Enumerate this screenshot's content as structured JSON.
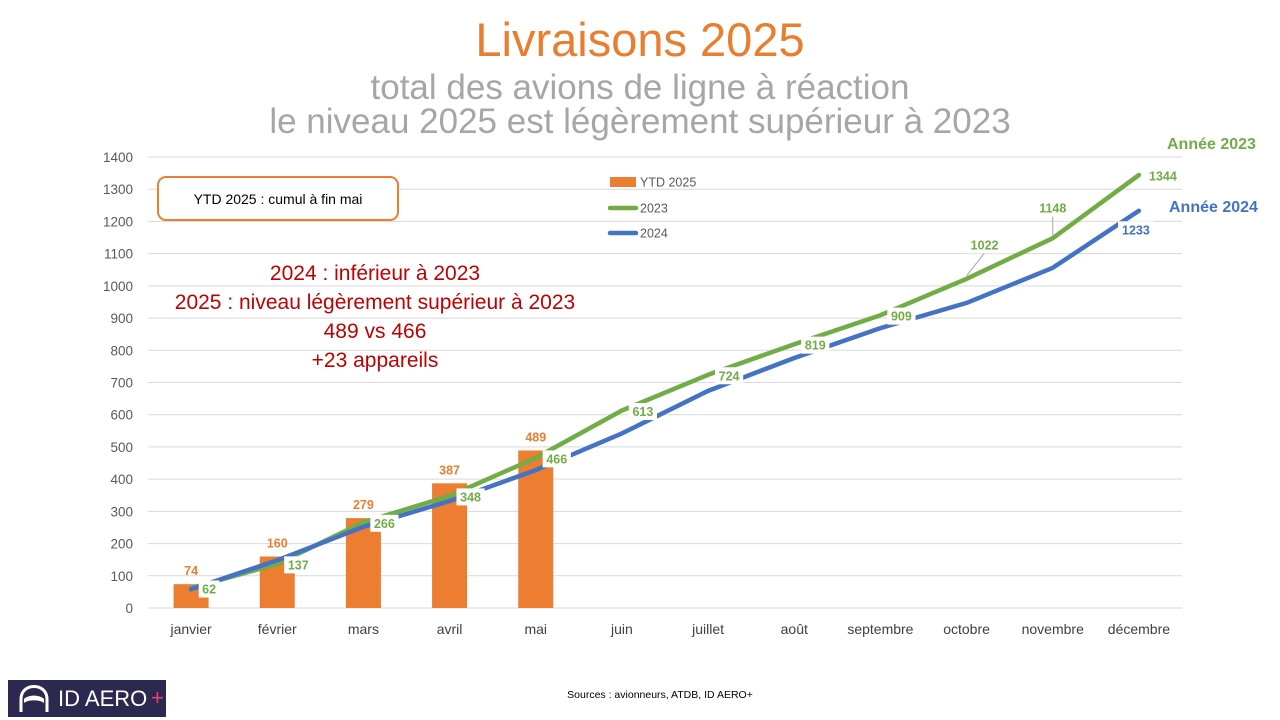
{
  "chart_data": {
    "type": "bar",
    "title": "Livraisons 2025",
    "subtitle": [
      "total des avions de ligne à réaction",
      "le niveau 2025 est légèrement supérieur à 2023"
    ],
    "categories": [
      "janvier",
      "février",
      "mars",
      "avril",
      "mai",
      "juin",
      "juillet",
      "août",
      "septembre",
      "octobre",
      "novembre",
      "décembre"
    ],
    "series": [
      {
        "name": "YTD 2025",
        "type": "bar",
        "color": "#ed7d31",
        "values": [
          74,
          160,
          279,
          387,
          489,
          null,
          null,
          null,
          null,
          null,
          null,
          null
        ],
        "data_labels": true
      },
      {
        "name": "2023",
        "type": "line",
        "color": "#70ad47",
        "values": [
          62,
          137,
          266,
          348,
          466,
          613,
          724,
          819,
          909,
          1022,
          1148,
          1344
        ],
        "data_labels": true,
        "end_label": "Année 2023"
      },
      {
        "name": "2024",
        "type": "line",
        "color": "#4472c4",
        "values": [
          58,
          148,
          252,
          332,
          428,
          542,
          674,
          776,
          869,
          947,
          1056,
          1233
        ],
        "data_labels": false,
        "end_value_label": true,
        "end_label": "Année 2024"
      }
    ],
    "ylim": [
      0,
      1400
    ],
    "yticks": [
      0,
      100,
      200,
      300,
      400,
      500,
      600,
      700,
      800,
      900,
      1000,
      1100,
      1200,
      1300,
      1400
    ],
    "grid": true,
    "legend": "top-center",
    "info_box": "YTD 2025 : cumul à fin mai",
    "annotations": [
      "2024 : inférieur à 2023",
      "2025 : niveau légèrement supérieur à 2023",
      "489 vs 466",
      "+23 appareils"
    ]
  },
  "colors": {
    "title": "#e97e31",
    "subtitle": "#a6a6a6",
    "annotation": "#c00000",
    "info_box_border": "#ed7d31",
    "logo_background": "#2b2950",
    "logo_plus": "#e8426f"
  },
  "source": "Sources : avionneurs, ATDB, ID AERO+",
  "logo": {
    "text": "ID AERO",
    "plus": "+",
    "icon": "airplane-nose-icon"
  }
}
